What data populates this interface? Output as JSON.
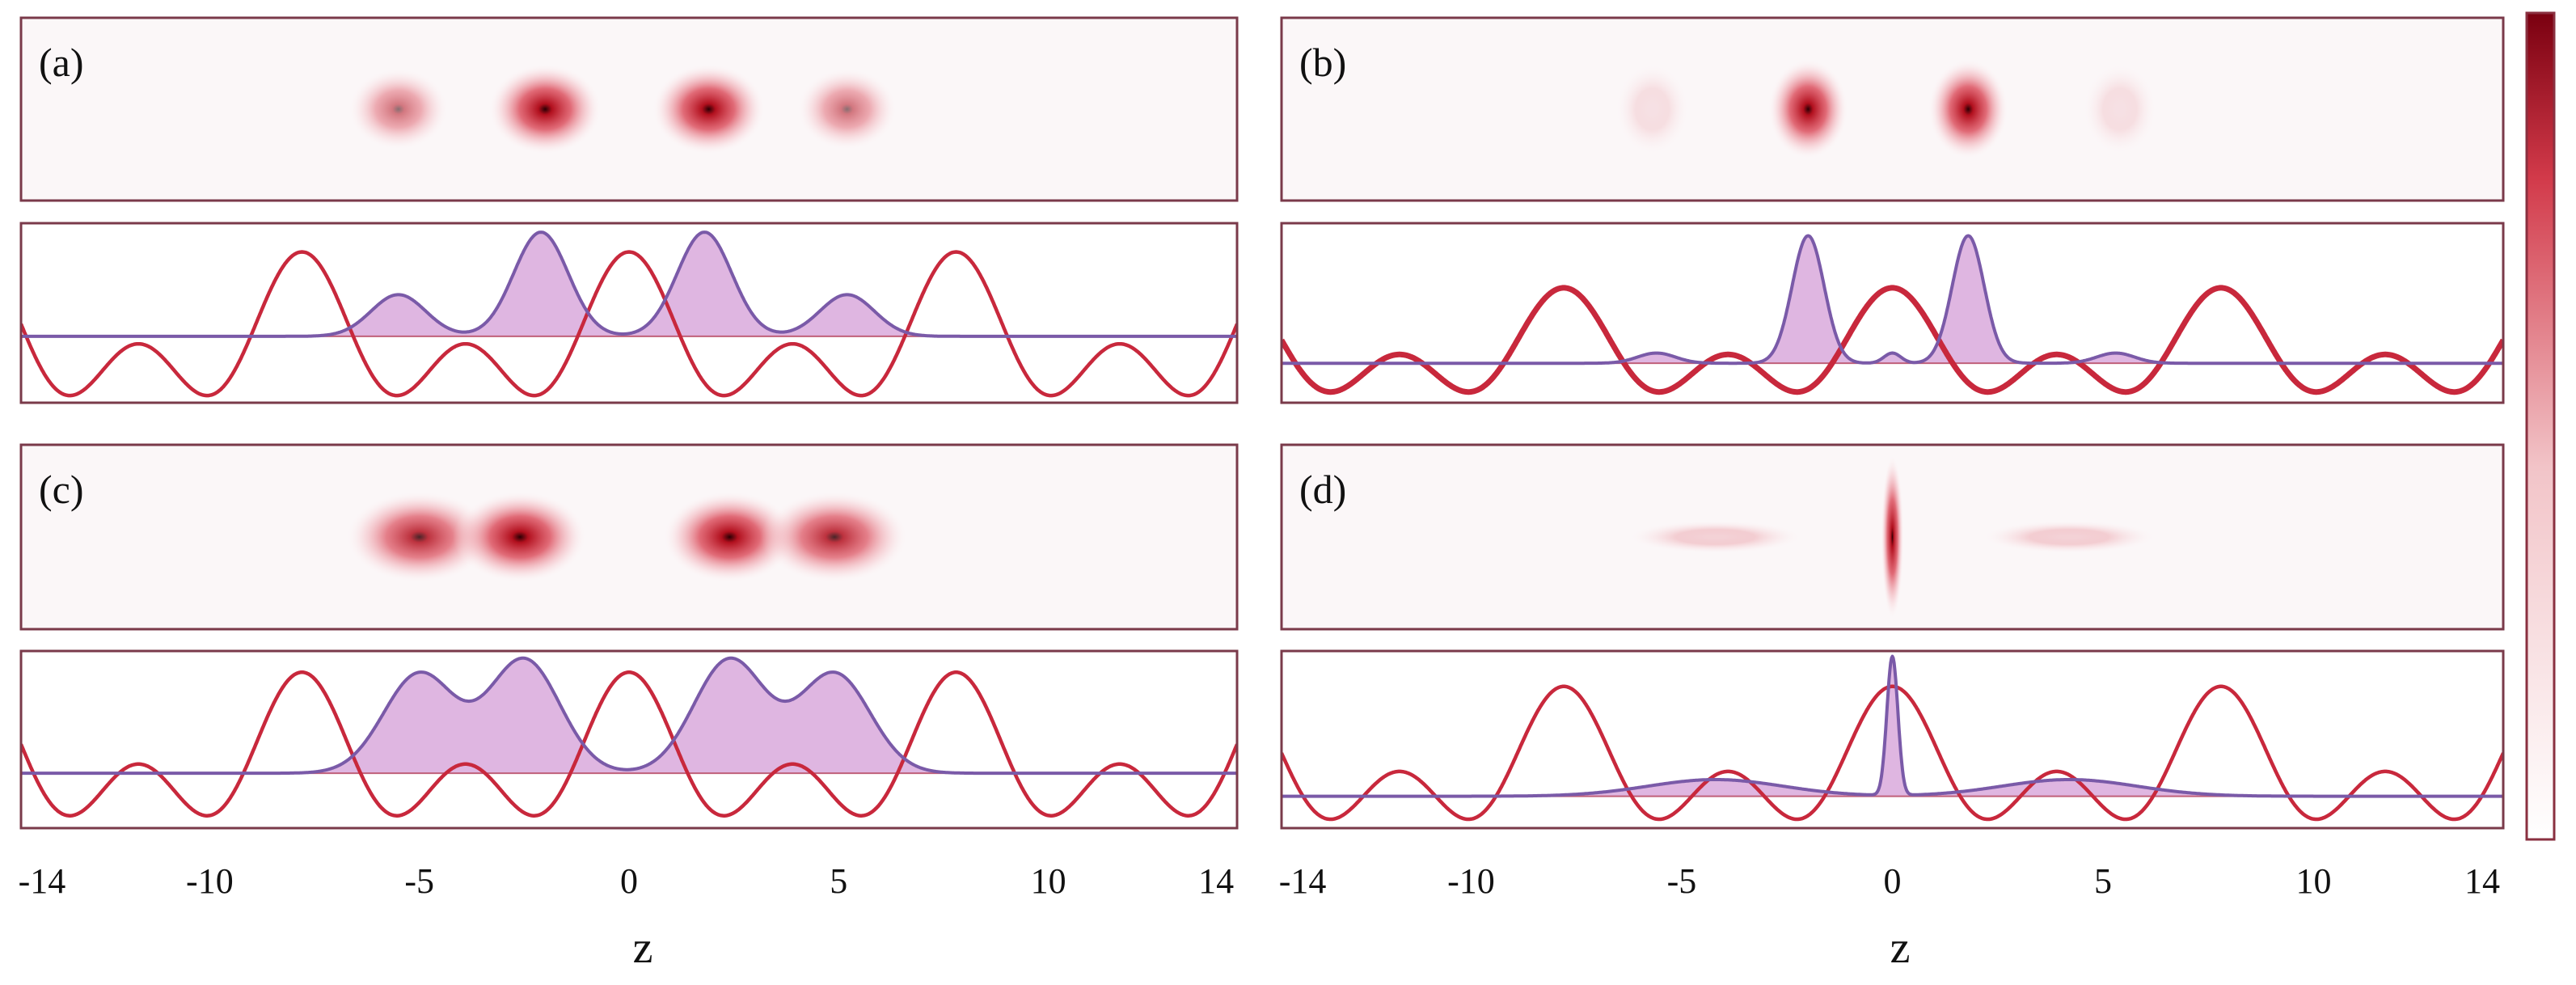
{
  "chart_data": {
    "type": "line",
    "xlabel": "z",
    "xlim": [
      -14.5,
      14.5
    ],
    "x_ticks": [
      {
        "value": -14,
        "label": "-14"
      },
      {
        "value": -10,
        "label": "-10"
      },
      {
        "value": -5,
        "label": "-5"
      },
      {
        "value": 0,
        "label": "0"
      },
      {
        "value": 5,
        "label": "5"
      },
      {
        "value": 10,
        "label": "10"
      },
      {
        "value": 14,
        "label": "14"
      }
    ],
    "colorbar": {
      "colors": [
        "#ffffff",
        "#f2c4c8",
        "#d23a4a",
        "#7a0010"
      ]
    },
    "colors": {
      "potential": "#c8283c",
      "wavefunction_line": "#7a5aa8",
      "wavefunction_fill": "#d9a9dc",
      "density": "#c81e2e",
      "frame": "#7a3a4a"
    },
    "panels": [
      {
        "label": "(a)",
        "density_lobes": [
          {
            "z": -5.5,
            "amp": 0.55,
            "wz": 0.75,
            "wy": 0.45
          },
          {
            "z": -2.0,
            "amp": 1.0,
            "wz": 0.85,
            "wy": 0.5
          },
          {
            "z": 1.9,
            "amp": 1.0,
            "wz": 0.85,
            "wy": 0.5
          },
          {
            "z": 5.2,
            "amp": 0.55,
            "wz": 0.75,
            "wy": 0.45
          }
        ],
        "wave_peaks": [
          {
            "z": -5.5,
            "amp": 0.38,
            "w": 0.65
          },
          {
            "z": -2.1,
            "amp": 0.95,
            "w": 0.65
          },
          {
            "z": 1.8,
            "amp": 0.95,
            "w": 0.65
          },
          {
            "z": 5.2,
            "amp": 0.38,
            "w": 0.65
          }
        ]
      },
      {
        "label": "(b)",
        "density_lobes": [
          {
            "z": -5.7,
            "amp": 0.18,
            "wz": 0.55,
            "wy": 0.5
          },
          {
            "z": -2.0,
            "amp": 1.0,
            "wz": 0.6,
            "wy": 0.55
          },
          {
            "z": 1.8,
            "amp": 1.0,
            "wz": 0.6,
            "wy": 0.55
          },
          {
            "z": 5.4,
            "amp": 0.18,
            "wz": 0.55,
            "wy": 0.5
          }
        ],
        "wave_peaks": [
          {
            "z": -5.6,
            "amp": 0.08,
            "w": 0.45
          },
          {
            "z": -2.0,
            "amp": 1.0,
            "w": 0.38
          },
          {
            "z": 0.0,
            "amp": 0.08,
            "w": 0.2
          },
          {
            "z": 1.8,
            "amp": 1.0,
            "w": 0.38
          },
          {
            "z": 5.3,
            "amp": 0.08,
            "w": 0.45
          }
        ]
      },
      {
        "label": "(c)",
        "density_lobes": [
          {
            "z": -5.0,
            "amp": 0.85,
            "wz": 1.1,
            "wy": 0.5
          },
          {
            "z": -2.6,
            "amp": 1.0,
            "wz": 1.0,
            "wy": 0.5
          },
          {
            "z": 2.4,
            "amp": 1.0,
            "wz": 1.0,
            "wy": 0.5
          },
          {
            "z": 4.9,
            "amp": 0.85,
            "wz": 1.1,
            "wy": 0.5
          }
        ],
        "wave_peaks": [
          {
            "z": -5.0,
            "amp": 0.7,
            "w": 0.85
          },
          {
            "z": -2.5,
            "amp": 0.8,
            "w": 0.85
          },
          {
            "z": 2.4,
            "amp": 0.8,
            "w": 0.85
          },
          {
            "z": 4.9,
            "amp": 0.7,
            "w": 0.85
          }
        ]
      },
      {
        "label": "(d)",
        "density_lobes": [
          {
            "z": -4.2,
            "amp": 0.3,
            "wz": 1.3,
            "wy": 0.18
          },
          {
            "z": 0.0,
            "amp": 1.0,
            "wz": 0.17,
            "wy": 0.9
          },
          {
            "z": 4.2,
            "amp": 0.3,
            "wz": 1.3,
            "wy": 0.18
          }
        ],
        "wave_peaks": [
          {
            "z": -4.2,
            "amp": 0.12,
            "w": 1.6
          },
          {
            "z": 0.0,
            "amp": 1.0,
            "w": 0.13
          },
          {
            "z": 4.2,
            "amp": 0.12,
            "w": 1.6
          }
        ]
      }
    ]
  }
}
